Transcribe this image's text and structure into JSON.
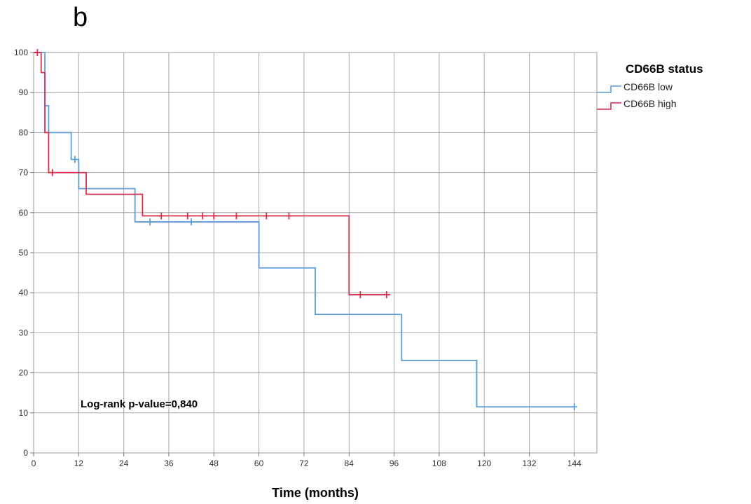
{
  "panel_label": "b",
  "chart_data": {
    "type": "line",
    "step": true,
    "title": "",
    "xlabel": "Time (months)",
    "ylabel": "",
    "xlim": [
      0,
      150
    ],
    "ylim": [
      0,
      100
    ],
    "xticks": [
      0,
      12,
      24,
      36,
      48,
      60,
      72,
      84,
      96,
      108,
      120,
      132,
      144
    ],
    "yticks": [
      0,
      10,
      20,
      30,
      40,
      50,
      60,
      70,
      80,
      90,
      100
    ],
    "grid": true,
    "legend": {
      "title": "CD66B status",
      "position": "top-right"
    },
    "annotation": "Log-rank p-value=0,840",
    "series": [
      {
        "name": "CD66B low",
        "color": "#5b9bd5",
        "steps": [
          [
            0,
            100
          ],
          [
            3,
            100
          ],
          [
            3,
            86.7
          ],
          [
            4,
            86.7
          ],
          [
            4,
            80
          ],
          [
            10,
            80
          ],
          [
            10,
            73.3
          ],
          [
            12,
            73.3
          ],
          [
            12,
            66
          ],
          [
            27,
            66
          ],
          [
            27,
            57.7
          ],
          [
            60,
            57.7
          ],
          [
            60,
            46.2
          ],
          [
            75,
            46.2
          ],
          [
            75,
            34.6
          ],
          [
            98,
            34.6
          ],
          [
            98,
            23.1
          ],
          [
            118,
            23.1
          ],
          [
            118,
            11.5
          ],
          [
            144,
            11.5
          ]
        ],
        "censored": [
          [
            11,
            73.3
          ],
          [
            31,
            57.7
          ],
          [
            42,
            57.7
          ],
          [
            144,
            11.5
          ]
        ]
      },
      {
        "name": "CD66B high",
        "color": "#d62e4f",
        "steps": [
          [
            0,
            100
          ],
          [
            2,
            100
          ],
          [
            2,
            95
          ],
          [
            3,
            95
          ],
          [
            3,
            80
          ],
          [
            4,
            80
          ],
          [
            4,
            70
          ],
          [
            14,
            70
          ],
          [
            14,
            64.6
          ],
          [
            29,
            64.6
          ],
          [
            29,
            59.2
          ],
          [
            84,
            59.2
          ],
          [
            84,
            39.5
          ],
          [
            95,
            39.5
          ]
        ],
        "censored": [
          [
            1,
            100
          ],
          [
            5,
            70
          ],
          [
            34,
            59.2
          ],
          [
            41,
            59.2
          ],
          [
            45,
            59.2
          ],
          [
            48,
            59.2
          ],
          [
            54,
            59.2
          ],
          [
            62,
            59.2
          ],
          [
            68,
            59.2
          ],
          [
            87,
            39.5
          ],
          [
            94,
            39.5
          ]
        ]
      }
    ]
  }
}
